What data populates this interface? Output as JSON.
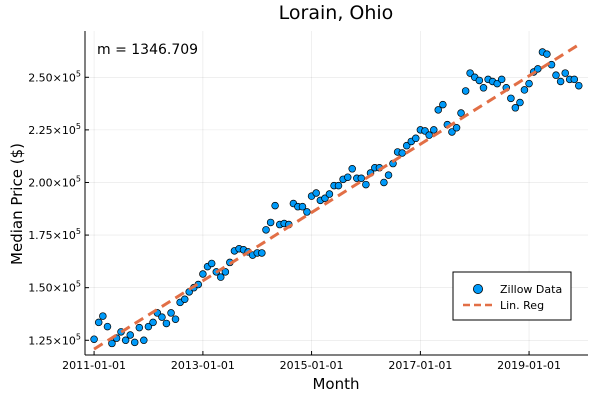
{
  "chart_data": {
    "type": "scatter",
    "title": "Lorain, Ohio",
    "xlabel": "Month",
    "ylabel": "Median Price ($)",
    "annotation": "m = 1346.709",
    "x_ticks": [
      "2011-01-01",
      "2013-01-01",
      "2015-01-01",
      "2017-01-01",
      "2019-01-01"
    ],
    "y_ticks": [
      {
        "mantissa": "1.25",
        "exp": "5",
        "value": 125000
      },
      {
        "mantissa": "1.50",
        "exp": "5",
        "value": 150000
      },
      {
        "mantissa": "1.75",
        "exp": "5",
        "value": 175000
      },
      {
        "mantissa": "2.00",
        "exp": "5",
        "value": 200000
      },
      {
        "mantissa": "2.25",
        "exp": "5",
        "value": 225000
      },
      {
        "mantissa": "2.50",
        "exp": "5",
        "value": 250000
      }
    ],
    "xlim": [
      "2010-11-01",
      "2020-02-01"
    ],
    "ylim": [
      118000,
      272000
    ],
    "grid": true,
    "legend_position": "bottom-right",
    "series": [
      {
        "name": "Zillow Data",
        "kind": "scatter",
        "color": "#009af9",
        "x": [
          "2011-01-01",
          "2011-02-01",
          "2011-03-01",
          "2011-04-01",
          "2011-05-01",
          "2011-06-01",
          "2011-07-01",
          "2011-08-01",
          "2011-09-01",
          "2011-10-01",
          "2011-11-01",
          "2011-12-01",
          "2012-01-01",
          "2012-02-01",
          "2012-03-01",
          "2012-04-01",
          "2012-05-01",
          "2012-06-01",
          "2012-07-01",
          "2012-08-01",
          "2012-09-01",
          "2012-10-01",
          "2012-11-01",
          "2012-12-01",
          "2013-01-01",
          "2013-02-01",
          "2013-03-01",
          "2013-04-01",
          "2013-05-01",
          "2013-06-01",
          "2013-07-01",
          "2013-08-01",
          "2013-09-01",
          "2013-10-01",
          "2013-11-01",
          "2013-12-01",
          "2014-01-01",
          "2014-02-01",
          "2014-03-01",
          "2014-04-01",
          "2014-05-01",
          "2014-06-01",
          "2014-07-01",
          "2014-08-01",
          "2014-09-01",
          "2014-10-01",
          "2014-11-01",
          "2014-12-01",
          "2015-01-01",
          "2015-02-01",
          "2015-03-01",
          "2015-04-01",
          "2015-05-01",
          "2015-06-01",
          "2015-07-01",
          "2015-08-01",
          "2015-09-01",
          "2015-10-01",
          "2015-11-01",
          "2015-12-01",
          "2016-01-01",
          "2016-02-01",
          "2016-03-01",
          "2016-04-01",
          "2016-05-01",
          "2016-06-01",
          "2016-07-01",
          "2016-08-01",
          "2016-09-01",
          "2016-10-01",
          "2016-11-01",
          "2016-12-01",
          "2017-01-01",
          "2017-02-01",
          "2017-03-01",
          "2017-04-01",
          "2017-05-01",
          "2017-06-01",
          "2017-07-01",
          "2017-08-01",
          "2017-09-01",
          "2017-10-01",
          "2017-11-01",
          "2017-12-01",
          "2018-01-01",
          "2018-02-01",
          "2018-03-01",
          "2018-04-01",
          "2018-05-01",
          "2018-06-01",
          "2018-07-01",
          "2018-08-01",
          "2018-09-01",
          "2018-10-01",
          "2018-11-01",
          "2018-12-01",
          "2019-01-01",
          "2019-02-01",
          "2019-03-01",
          "2019-04-01",
          "2019-05-01",
          "2019-06-01",
          "2019-07-01",
          "2019-08-01",
          "2019-09-01",
          "2019-10-01",
          "2019-11-01",
          "2019-12-01"
        ],
        "y": [
          125500,
          133500,
          136500,
          131500,
          123500,
          126000,
          129000,
          125000,
          127500,
          124000,
          131000,
          125000,
          131500,
          133500,
          138000,
          136000,
          133000,
          138000,
          135000,
          143000,
          144500,
          148000,
          150000,
          151500,
          156500,
          160000,
          161500,
          157500,
          155000,
          157500,
          162000,
          167500,
          168500,
          168000,
          167000,
          165500,
          166500,
          166500,
          177500,
          181000,
          189000,
          180000,
          180500,
          180000,
          190000,
          188500,
          188500,
          186000,
          193500,
          195000,
          191500,
          192500,
          194500,
          198500,
          198500,
          201500,
          202500,
          206500,
          202000,
          202000,
          199000,
          204500,
          207000,
          207000,
          200000,
          203500,
          209000,
          214500,
          214000,
          217500,
          219500,
          221000,
          225000,
          224500,
          222500,
          225000,
          234500,
          237000,
          227500,
          224000,
          226000,
          233000,
          243500,
          252000,
          250000,
          248500,
          245000,
          249000,
          248000,
          247000,
          249000,
          245000,
          240000,
          235500,
          238000,
          244000,
          247000,
          252500,
          254000,
          262000,
          261000,
          256000,
          251000,
          248000,
          252000,
          249000,
          249000,
          246000
        ]
      },
      {
        "name": "Lin. Reg",
        "kind": "line",
        "style": "dashed",
        "color": "#e26f46",
        "x": [
          "2011-01-01",
          "2019-12-01"
        ],
        "y": [
          120800,
          265500
        ]
      }
    ]
  }
}
